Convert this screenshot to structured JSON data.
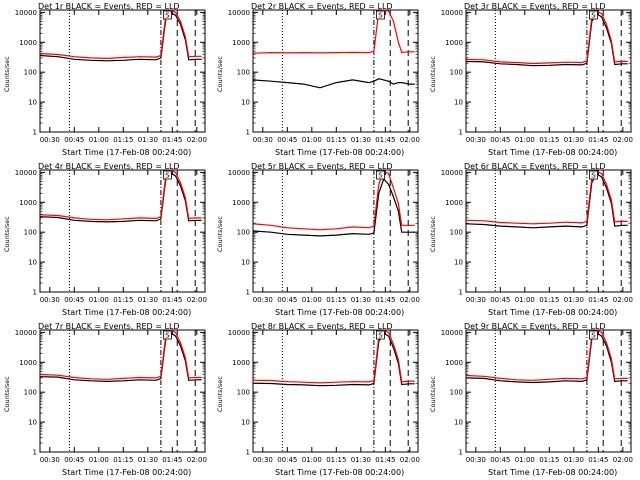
{
  "colors": {
    "events": "#000000",
    "lld": "#ff0000",
    "axis": "#000000"
  },
  "chart_data": {
    "type": "line",
    "y_scale": "log",
    "ylim": [
      1,
      12000
    ],
    "y_ticks": [
      "1",
      "10",
      "100",
      "1000",
      "10000"
    ],
    "x_ticks": [
      "00:30",
      "00:45",
      "01:00",
      "01:15",
      "01:30",
      "01:45",
      "02:00"
    ],
    "x_tick_times": [
      "00:30",
      "00:45",
      "01:00",
      "01:15",
      "01:30",
      "01:45",
      "02:00"
    ],
    "xlim": [
      "00:24",
      "02:05"
    ],
    "x_label": "Start Time (17-Feb-08 00:24:00)",
    "y_label": "Counts/sec",
    "vlines": [
      {
        "time": "00:42",
        "style": "dotted"
      },
      {
        "time": "01:38",
        "style": "dash-dot"
      },
      {
        "time": "01:48",
        "style": "dashed"
      },
      {
        "time": "01:59",
        "style": "dashed"
      }
    ],
    "marker_label": "S",
    "marker_time": "01:42",
    "panels": [
      {
        "title": "Det 1r BLACK = Events, RED = LLD",
        "series": [
          {
            "name": "Events",
            "times": [
              "00:24",
              "00:35",
              "00:45",
              "00:55",
              "01:05",
              "01:15",
              "01:25",
              "01:35",
              "01:38",
              "01:41",
              "01:44",
              "01:47",
              "01:50",
              "01:53",
              "01:55",
              "02:00",
              "02:03"
            ],
            "values": [
              360,
              330,
              270,
              250,
              240,
              250,
              270,
              260,
              300,
              6000,
              9800,
              8000,
              4000,
              1200,
              260,
              270,
              270
            ]
          },
          {
            "name": "LLD",
            "times": [
              "00:24",
              "00:35",
              "00:45",
              "00:55",
              "01:05",
              "01:15",
              "01:25",
              "01:35",
              "01:38",
              "01:41",
              "01:44",
              "01:47",
              "01:50",
              "01:53",
              "01:55",
              "02:00",
              "02:03"
            ],
            "values": [
              420,
              390,
              330,
              300,
              290,
              310,
              330,
              320,
              360,
              8000,
              12000,
              10000,
              5000,
              1500,
              330,
              340,
              340
            ]
          }
        ]
      },
      {
        "title": "Det 2r BLACK = Events, RED = LLD",
        "series": [
          {
            "name": "Events",
            "times": [
              "00:24",
              "00:35",
              "00:45",
              "00:55",
              "01:05",
              "01:15",
              "01:25",
              "01:35",
              "01:38",
              "01:41",
              "01:44",
              "01:47",
              "01:50",
              "01:53",
              "01:55",
              "02:00",
              "02:03"
            ],
            "values": [
              55,
              50,
              45,
              40,
              30,
              45,
              55,
              45,
              50,
              60,
              55,
              50,
              40,
              45,
              45,
              40,
              40
            ]
          },
          {
            "name": "LLD",
            "times": [
              "00:24",
              "00:35",
              "00:45",
              "00:55",
              "01:05",
              "01:15",
              "01:25",
              "01:35",
              "01:38",
              "01:41",
              "01:44",
              "01:47",
              "01:50",
              "01:53",
              "01:55",
              "02:00",
              "02:03"
            ],
            "values": [
              430,
              450,
              440,
              450,
              440,
              450,
              460,
              450,
              500,
              11000,
              12000,
              11000,
              5000,
              1000,
              460,
              480,
              480
            ]
          }
        ]
      },
      {
        "title": "Det 3r BLACK = Events, RED = LLD",
        "series": [
          {
            "name": "Events",
            "times": [
              "00:24",
              "00:35",
              "00:45",
              "00:55",
              "01:05",
              "01:15",
              "01:25",
              "01:35",
              "01:38",
              "01:41",
              "01:44",
              "01:47",
              "01:50",
              "01:53",
              "01:55",
              "02:00",
              "02:03"
            ],
            "values": [
              230,
              220,
              190,
              180,
              165,
              170,
              180,
              175,
              200,
              5000,
              9000,
              7000,
              3000,
              900,
              180,
              190,
              190
            ]
          },
          {
            "name": "LLD",
            "times": [
              "00:24",
              "00:35",
              "00:45",
              "00:55",
              "01:05",
              "01:15",
              "01:25",
              "01:35",
              "01:38",
              "01:41",
              "01:44",
              "01:47",
              "01:50",
              "01:53",
              "01:55",
              "02:00",
              "02:03"
            ],
            "values": [
              270,
              260,
              220,
              210,
              195,
              205,
              215,
              210,
              240,
              7000,
              11000,
              9000,
              4000,
              1100,
              220,
              230,
              230
            ]
          }
        ]
      },
      {
        "title": "Det 4r BLACK = Events, RED = LLD",
        "series": [
          {
            "name": "Events",
            "times": [
              "00:24",
              "00:35",
              "00:45",
              "00:55",
              "01:05",
              "01:15",
              "01:25",
              "01:35",
              "01:38",
              "01:41",
              "01:44",
              "01:47",
              "01:50",
              "01:53",
              "01:55",
              "02:00",
              "02:03"
            ],
            "values": [
              330,
              310,
              250,
              230,
              220,
              230,
              250,
              240,
              280,
              6000,
              9500,
              7500,
              3500,
              1100,
              240,
              250,
              250
            ]
          },
          {
            "name": "LLD",
            "times": [
              "00:24",
              "00:35",
              "00:45",
              "00:55",
              "01:05",
              "01:15",
              "01:25",
              "01:35",
              "01:38",
              "01:41",
              "01:44",
              "01:47",
              "01:50",
              "01:53",
              "01:55",
              "02:00",
              "02:03"
            ],
            "values": [
              380,
              360,
              300,
              270,
              260,
              280,
              300,
              290,
              330,
              8000,
              12000,
              10000,
              4500,
              1400,
              290,
              300,
              300
            ]
          }
        ]
      },
      {
        "title": "Det 5r BLACK = Events, RED = LLD",
        "series": [
          {
            "name": "Events",
            "times": [
              "00:24",
              "00:35",
              "00:45",
              "00:55",
              "01:05",
              "01:15",
              "01:25",
              "01:35",
              "01:38",
              "01:41",
              "01:44",
              "01:47",
              "01:50",
              "01:53",
              "01:55",
              "02:00",
              "02:03"
            ],
            "values": [
              110,
              100,
              85,
              80,
              75,
              80,
              90,
              85,
              95,
              2000,
              6000,
              4000,
              1500,
              500,
              100,
              100,
              100
            ]
          },
          {
            "name": "LLD",
            "times": [
              "00:24",
              "00:35",
              "00:45",
              "00:55",
              "01:05",
              "01:15",
              "01:25",
              "01:35",
              "01:38",
              "01:41",
              "01:44",
              "01:47",
              "01:50",
              "01:53",
              "01:55",
              "02:00",
              "02:03"
            ],
            "values": [
              190,
              170,
              140,
              130,
              120,
              130,
              150,
              140,
              160,
              4000,
              11000,
              9000,
              3000,
              900,
              170,
              170,
              170
            ]
          }
        ]
      },
      {
        "title": "Det 6r BLACK = Events, RED = LLD",
        "series": [
          {
            "name": "Events",
            "times": [
              "00:24",
              "00:35",
              "00:45",
              "00:55",
              "01:05",
              "01:15",
              "01:25",
              "01:35",
              "01:38",
              "01:41",
              "01:44",
              "01:47",
              "01:50",
              "01:53",
              "01:55",
              "02:00",
              "02:03"
            ],
            "values": [
              190,
              180,
              160,
              150,
              140,
              150,
              160,
              150,
              170,
              4500,
              9000,
              7000,
              3000,
              900,
              160,
              170,
              170
            ]
          },
          {
            "name": "LLD",
            "times": [
              "00:24",
              "00:35",
              "00:45",
              "00:55",
              "01:05",
              "01:15",
              "01:25",
              "01:35",
              "01:38",
              "01:41",
              "01:44",
              "01:47",
              "01:50",
              "01:53",
              "01:55",
              "02:00",
              "02:03"
            ],
            "values": [
              250,
              240,
              210,
              200,
              190,
              200,
              215,
              205,
              230,
              6500,
              11000,
              9000,
              4000,
              1200,
              220,
              230,
              230
            ]
          }
        ]
      },
      {
        "title": "Det 7r BLACK = Events, RED = LLD",
        "series": [
          {
            "name": "Events",
            "times": [
              "00:24",
              "00:35",
              "00:45",
              "00:55",
              "01:05",
              "01:15",
              "01:25",
              "01:35",
              "01:38",
              "01:41",
              "01:44",
              "01:47",
              "01:50",
              "01:53",
              "01:55",
              "02:00",
              "02:03"
            ],
            "values": [
              330,
              320,
              260,
              240,
              230,
              240,
              260,
              250,
              290,
              6000,
              9500,
              7500,
              3500,
              1100,
              250,
              260,
              260
            ]
          },
          {
            "name": "LLD",
            "times": [
              "00:24",
              "00:35",
              "00:45",
              "00:55",
              "01:05",
              "01:15",
              "01:25",
              "01:35",
              "01:38",
              "01:41",
              "01:44",
              "01:47",
              "01:50",
              "01:53",
              "01:55",
              "02:00",
              "02:03"
            ],
            "values": [
              390,
              370,
              310,
              280,
              270,
              290,
              310,
              300,
              340,
              8000,
              12000,
              10000,
              4500,
              1400,
              300,
              310,
              310
            ]
          }
        ]
      },
      {
        "title": "Det 8r BLACK = Events, RED = LLD",
        "series": [
          {
            "name": "Events",
            "times": [
              "00:24",
              "00:35",
              "00:45",
              "00:55",
              "01:05",
              "01:15",
              "01:25",
              "01:35",
              "01:38",
              "01:41",
              "01:44",
              "01:47",
              "01:50",
              "01:53",
              "01:55",
              "02:00",
              "02:03"
            ],
            "values": [
              200,
              195,
              180,
              175,
              165,
              170,
              180,
              175,
              195,
              5000,
              9500,
              7500,
              3000,
              900,
              180,
              190,
              190
            ]
          },
          {
            "name": "LLD",
            "times": [
              "00:24",
              "00:35",
              "00:45",
              "00:55",
              "01:05",
              "01:15",
              "01:25",
              "01:35",
              "01:38",
              "01:41",
              "01:44",
              "01:47",
              "01:50",
              "01:53",
              "01:55",
              "02:00",
              "02:03"
            ],
            "values": [
              250,
              245,
              225,
              215,
              205,
              215,
              225,
              220,
              245,
              7000,
              12000,
              10000,
              4000,
              1200,
              225,
              235,
              235
            ]
          }
        ]
      },
      {
        "title": "Det 9r BLACK = Events, RED = LLD",
        "series": [
          {
            "name": "Events",
            "times": [
              "00:24",
              "00:35",
              "00:45",
              "00:55",
              "01:05",
              "01:15",
              "01:25",
              "01:35",
              "01:38",
              "01:41",
              "01:44",
              "01:47",
              "01:50",
              "01:53",
              "01:55",
              "02:00",
              "02:03"
            ],
            "values": [
              300,
              290,
              240,
              220,
              210,
              220,
              240,
              230,
              260,
              6000,
              9500,
              7500,
              3500,
              1000,
              230,
              240,
              240
            ]
          },
          {
            "name": "LLD",
            "times": [
              "00:24",
              "00:35",
              "00:45",
              "00:55",
              "01:05",
              "01:15",
              "01:25",
              "01:35",
              "01:38",
              "01:41",
              "01:44",
              "01:47",
              "01:50",
              "01:53",
              "01:55",
              "02:00",
              "02:03"
            ],
            "values": [
              360,
              340,
              290,
              260,
              250,
              270,
              290,
              280,
              310,
              8000,
              12000,
              10000,
              4500,
              1300,
              280,
              290,
              290
            ]
          }
        ]
      }
    ]
  }
}
